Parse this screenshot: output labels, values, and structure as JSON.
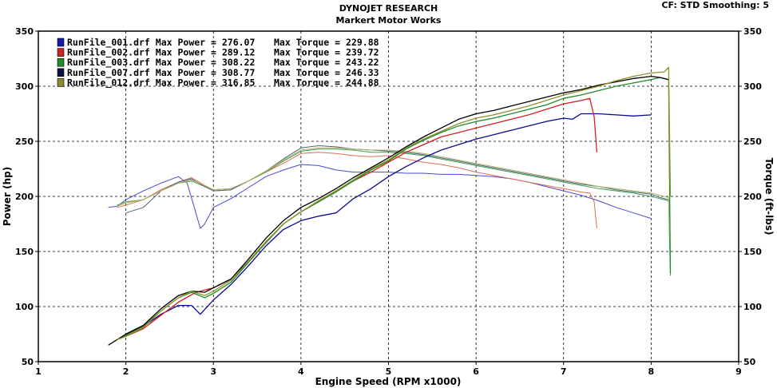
{
  "header": {
    "title": "DYNOJET RESEARCH",
    "subtitle": "Markert Motor Works",
    "cf_info": "CF: STD  Smoothing: 5"
  },
  "chart_data": {
    "type": "line",
    "xlabel": "Engine Speed (RPM x1000)",
    "ylabel_left": "Power (hp)",
    "ylabel_right": "Torque (ft-lbs)",
    "xlim": [
      1,
      9
    ],
    "ylim": [
      50,
      350
    ],
    "x_ticks": [
      "1",
      "2",
      "3",
      "4",
      "5",
      "6",
      "7",
      "8",
      "9"
    ],
    "y_ticks": [
      "50",
      "100",
      "150",
      "200",
      "250",
      "300",
      "350"
    ],
    "grid": true,
    "legend_position": "top-left",
    "legend": [
      {
        "name": "RunFile_001.drf",
        "label": "Max Power = 276.07",
        "torque_label": "Max Torque = 229.88",
        "color": "#1a1aa0"
      },
      {
        "name": "RunFile_002.drf",
        "label": "Max Power = 289.12",
        "torque_label": "Max Torque = 239.72",
        "color": "#cc2222"
      },
      {
        "name": "RunFile_003.drf",
        "label": "Max Power = 308.22",
        "torque_label": "Max Torque = 243.22",
        "color": "#1f8a2a"
      },
      {
        "name": "RunFile_007.drf",
        "label": "Max Power = 308.77",
        "torque_label": "Max Torque = 246.33",
        "color": "#101040"
      },
      {
        "name": "RunFile_012.drf",
        "label": "Max Power = 316.85",
        "torque_label": "Max Torque = 244.88",
        "color": "#8a8a30"
      }
    ],
    "power_series": [
      {
        "name": "RunFile_001.drf",
        "color": "#0b0b8c",
        "x": [
          2.0,
          2.2,
          2.4,
          2.6,
          2.75,
          2.85,
          3.0,
          3.2,
          3.4,
          3.6,
          3.8,
          4.0,
          4.2,
          4.4,
          4.6,
          4.8,
          5.0,
          5.2,
          5.4,
          5.6,
          5.8,
          6.0,
          6.2,
          6.4,
          6.6,
          6.8,
          7.0,
          7.1,
          7.2,
          7.4,
          7.6,
          7.8,
          8.0
        ],
        "y": [
          75,
          82,
          93,
          101,
          101,
          93,
          106,
          120,
          137,
          155,
          170,
          178,
          182,
          185,
          198,
          207,
          218,
          227,
          235,
          242,
          247,
          252,
          256,
          260,
          264,
          268,
          271,
          270,
          275,
          275,
          274,
          273,
          274
        ]
      },
      {
        "name": "RunFile_002.drf",
        "color": "#d42020",
        "x": [
          1.9,
          2.0,
          2.2,
          2.4,
          2.6,
          2.8,
          3.0,
          3.2,
          3.4,
          3.6,
          3.8,
          4.0,
          4.2,
          4.4,
          4.6,
          4.8,
          5.0,
          5.2,
          5.4,
          5.6,
          5.8,
          6.0,
          6.2,
          6.4,
          6.6,
          6.8,
          7.0,
          7.2,
          7.3,
          7.35,
          7.38
        ],
        "y": [
          70,
          73,
          80,
          92,
          104,
          113,
          117,
          125,
          141,
          158,
          175,
          186,
          195,
          205,
          214,
          222,
          231,
          240,
          247,
          254,
          258,
          262,
          266,
          270,
          274,
          279,
          284,
          287,
          289,
          272,
          240
        ]
      },
      {
        "name": "RunFile_003.drf",
        "color": "#1e8c28",
        "x": [
          1.9,
          2.0,
          2.2,
          2.4,
          2.6,
          2.75,
          2.9,
          3.0,
          3.2,
          3.4,
          3.6,
          3.8,
          4.0,
          4.2,
          4.4,
          4.6,
          4.8,
          5.0,
          5.2,
          5.4,
          5.6,
          5.8,
          6.0,
          6.2,
          6.4,
          6.6,
          6.8,
          7.0,
          7.2,
          7.4,
          7.6,
          7.8,
          8.0,
          8.1,
          8.2,
          8.22
        ],
        "y": [
          70,
          74,
          82,
          96,
          108,
          113,
          108,
          112,
          122,
          140,
          158,
          175,
          186,
          195,
          204,
          214,
          224,
          232,
          243,
          251,
          258,
          264,
          268,
          271,
          275,
          279,
          283,
          289,
          292,
          296,
          300,
          303,
          306,
          308,
          306,
          130
        ]
      },
      {
        "name": "RunFile_007.drf",
        "color": "#000000",
        "x": [
          1.8,
          2.0,
          2.2,
          2.4,
          2.6,
          2.75,
          2.9,
          3.0,
          3.2,
          3.4,
          3.6,
          3.8,
          4.0,
          4.2,
          4.4,
          4.6,
          4.8,
          5.0,
          5.2,
          5.4,
          5.6,
          5.8,
          6.0,
          6.2,
          6.4,
          6.6,
          6.8,
          7.0,
          7.2,
          7.4,
          7.6,
          7.8,
          8.0,
          8.1,
          8.2
        ],
        "y": [
          65,
          75,
          83,
          98,
          110,
          114,
          113,
          117,
          125,
          143,
          162,
          178,
          190,
          198,
          207,
          217,
          226,
          235,
          245,
          254,
          262,
          270,
          275,
          278,
          282,
          286,
          290,
          294,
          297,
          301,
          304,
          307,
          309,
          308,
          306
        ]
      },
      {
        "name": "RunFile_012.drf",
        "color": "#8f8f2a",
        "x": [
          1.9,
          2.0,
          2.2,
          2.4,
          2.6,
          2.75,
          2.9,
          3.0,
          3.2,
          3.4,
          3.6,
          3.8,
          4.0,
          4.2,
          4.4,
          4.6,
          4.8,
          5.0,
          5.2,
          5.4,
          5.6,
          5.8,
          6.0,
          6.2,
          6.4,
          6.6,
          6.8,
          7.0,
          7.2,
          7.4,
          7.6,
          7.8,
          8.0,
          8.15,
          8.2,
          8.22
        ],
        "y": [
          70,
          73,
          81,
          96,
          108,
          114,
          110,
          114,
          124,
          141,
          159,
          175,
          186,
          196,
          205,
          215,
          225,
          233,
          244,
          252,
          259,
          266,
          271,
          274,
          278,
          282,
          287,
          292,
          296,
          300,
          305,
          309,
          312,
          313,
          317,
          200
        ]
      }
    ],
    "torque_series": [
      {
        "name": "RunFile_001.drf",
        "color": "#4a4ad0",
        "x": [
          1.8,
          1.9,
          2.0,
          2.2,
          2.4,
          2.6,
          2.7,
          2.8,
          2.85,
          2.9,
          3.0,
          3.2,
          3.4,
          3.6,
          3.8,
          4.0,
          4.2,
          4.4,
          4.6,
          4.8,
          5.0,
          5.2,
          5.4,
          5.6,
          5.8,
          6.0,
          6.2,
          6.4,
          6.6,
          6.8,
          7.0,
          7.2,
          7.4,
          7.6,
          7.8,
          8.0
        ],
        "y": [
          190,
          191,
          197,
          205,
          212,
          218,
          212,
          185,
          171,
          175,
          190,
          198,
          208,
          218,
          224,
          229,
          228,
          224,
          222,
          222,
          222,
          221,
          221,
          220,
          220,
          219,
          218,
          216,
          213,
          209,
          205,
          201,
          196,
          190,
          185,
          180
        ]
      },
      {
        "name": "RunFile_002.drf",
        "color": "#e07050",
        "x": [
          1.9,
          2.0,
          2.2,
          2.4,
          2.6,
          2.75,
          2.9,
          3.0,
          3.2,
          3.4,
          3.6,
          3.8,
          4.0,
          4.2,
          4.4,
          4.6,
          4.8,
          5.0,
          5.2,
          5.4,
          5.6,
          5.8,
          6.0,
          6.2,
          6.4,
          6.6,
          6.8,
          7.0,
          7.2,
          7.3,
          7.35,
          7.38
        ],
        "y": [
          190,
          192,
          197,
          206,
          213,
          217,
          210,
          205,
          206,
          214,
          222,
          230,
          239,
          240,
          239,
          237,
          236,
          237,
          234,
          231,
          229,
          226,
          222,
          219,
          216,
          213,
          210,
          207,
          204,
          203,
          195,
          171
        ]
      },
      {
        "name": "RunFile_003.drf",
        "color": "#40a050",
        "x": [
          1.9,
          2.0,
          2.2,
          2.4,
          2.6,
          2.75,
          2.9,
          3.0,
          3.2,
          3.4,
          3.6,
          3.8,
          4.0,
          4.2,
          4.4,
          4.6,
          4.8,
          5.0,
          5.2,
          5.4,
          5.6,
          5.8,
          6.0,
          6.2,
          6.4,
          6.6,
          6.8,
          7.0,
          7.2,
          7.4,
          7.6,
          7.8,
          8.0,
          8.1,
          8.2,
          8.22
        ],
        "y": [
          192,
          195,
          197,
          205,
          212,
          214,
          209,
          206,
          207,
          214,
          222,
          232,
          241,
          243,
          243,
          242,
          240,
          240,
          239,
          237,
          234,
          231,
          228,
          225,
          222,
          219,
          216,
          213,
          210,
          207,
          205,
          203,
          200,
          198,
          196,
          128
        ]
      },
      {
        "name": "RunFile_007.drf",
        "color": "#506080",
        "x": [
          2.0,
          2.2,
          2.4,
          2.6,
          2.75,
          2.9,
          3.0,
          3.2,
          3.4,
          3.6,
          3.8,
          4.0,
          4.2,
          4.4,
          4.6,
          4.8,
          5.0,
          5.2,
          5.4,
          5.6,
          5.8,
          6.0,
          6.2,
          6.4,
          6.6,
          6.8,
          7.0,
          7.2,
          7.4,
          7.6,
          7.8,
          8.0,
          8.1,
          8.2
        ],
        "y": [
          185,
          190,
          205,
          213,
          216,
          209,
          205,
          206,
          214,
          223,
          234,
          244,
          246,
          245,
          243,
          242,
          241,
          240,
          238,
          235,
          232,
          229,
          226,
          223,
          220,
          217,
          214,
          211,
          209,
          206,
          204,
          202,
          199,
          197
        ]
      },
      {
        "name": "RunFile_012.drf",
        "color": "#b0b060",
        "x": [
          1.9,
          2.0,
          2.2,
          2.4,
          2.6,
          2.75,
          2.9,
          3.0,
          3.2,
          3.4,
          3.6,
          3.8,
          4.0,
          4.2,
          4.4,
          4.6,
          4.8,
          5.0,
          5.2,
          5.4,
          5.6,
          5.8,
          6.0,
          6.2,
          6.4,
          6.6,
          6.8,
          7.0,
          7.2,
          7.4,
          7.6,
          7.8,
          8.0,
          8.15,
          8.2,
          8.22
        ],
        "y": [
          191,
          194,
          197,
          205,
          212,
          215,
          210,
          206,
          207,
          214,
          223,
          233,
          242,
          244,
          244,
          243,
          242,
          242,
          241,
          239,
          236,
          233,
          230,
          227,
          224,
          221,
          218,
          215,
          212,
          209,
          207,
          205,
          203,
          200,
          199,
          140
        ]
      }
    ]
  }
}
